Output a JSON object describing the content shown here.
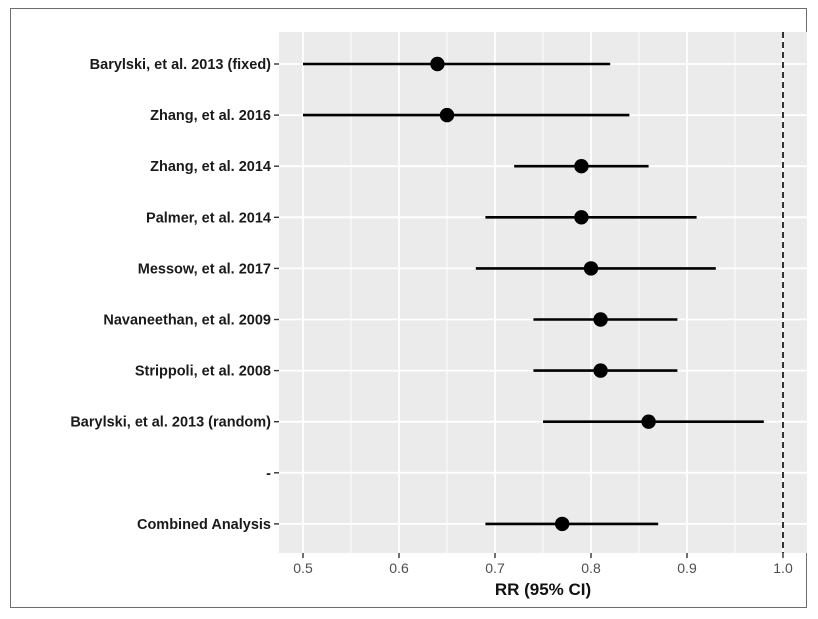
{
  "chart_data": {
    "type": "scatter",
    "subtype": "forest-plot",
    "title": "",
    "xlabel": "RR (95% CI)",
    "ylabel": "",
    "xlim": [
      0.475,
      1.025
    ],
    "x_ticks": [
      0.5,
      0.6,
      0.7,
      0.8,
      0.9,
      1.0
    ],
    "x_tick_labels": [
      "0.5",
      "0.6",
      "0.7",
      "0.8",
      "0.9",
      "1.0"
    ],
    "reference_line": {
      "x": 1.0,
      "style": "dashed"
    },
    "grid": true,
    "panel_background": "#ebebeb",
    "grid_color": "#ffffff",
    "point_color": "#000000",
    "rows": [
      {
        "label": "Barylski, et al. 2013 (fixed)",
        "estimate": 0.64,
        "lower": 0.5,
        "upper": 0.82
      },
      {
        "label": "Zhang, et al. 2016",
        "estimate": 0.65,
        "lower": 0.5,
        "upper": 0.84
      },
      {
        "label": "Zhang, et al. 2014",
        "estimate": 0.79,
        "lower": 0.72,
        "upper": 0.86
      },
      {
        "label": "Palmer, et al. 2014",
        "estimate": 0.79,
        "lower": 0.69,
        "upper": 0.91
      },
      {
        "label": "Messow, et al. 2017",
        "estimate": 0.8,
        "lower": 0.68,
        "upper": 0.93
      },
      {
        "label": "Navaneethan, et al. 2009",
        "estimate": 0.81,
        "lower": 0.74,
        "upper": 0.89
      },
      {
        "label": "Strippoli, et al. 2008",
        "estimate": 0.81,
        "lower": 0.74,
        "upper": 0.89
      },
      {
        "label": "Barylski, et al. 2013 (random)",
        "estimate": 0.86,
        "lower": 0.75,
        "upper": 0.98
      },
      {
        "label": "-",
        "estimate": null,
        "lower": null,
        "upper": null
      },
      {
        "label": "Combined Analysis",
        "estimate": 0.77,
        "lower": 0.69,
        "upper": 0.87
      }
    ]
  }
}
